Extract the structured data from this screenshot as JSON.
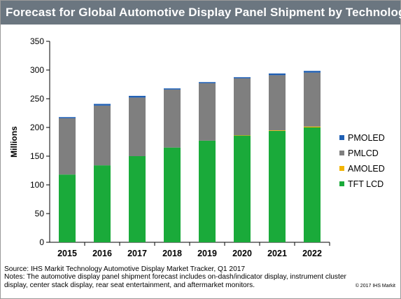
{
  "title": "Forecast for Global Automotive Display Panel Shipment by Technology",
  "source_line": "Source: IHS Markit Technology Automotive Display Market Tracker, Q1 2017",
  "notes_line": "Notes: The automotive display panel shipment forecast includes on-dash/indicator display, instrument cluster display, center stack display, rear seat entertainment, and aftermarket monitors.",
  "copyright": "© 2017 IHS Markit",
  "colors": {
    "TFT LCD": "#1aaa3a",
    "AMOLED": "#f2b400",
    "PMLCD": "#7f7f7f",
    "PMOLED": "#1f5fb4"
  },
  "chart_data": {
    "type": "bar",
    "stacked": true,
    "title": "Forecast for Global Automotive Display Panel Shipment by Technology",
    "xlabel": "",
    "ylabel": "Millions",
    "ylim": [
      0,
      350
    ],
    "yticks": [
      0,
      50,
      100,
      150,
      200,
      250,
      300,
      350
    ],
    "grid": false,
    "legend_position": "right",
    "categories": [
      "2015",
      "2016",
      "2017",
      "2018",
      "2019",
      "2020",
      "2021",
      "2022"
    ],
    "series": [
      {
        "name": "TFT LCD",
        "values": [
          118,
          134,
          150,
          165,
          177,
          186,
          194,
          200
        ]
      },
      {
        "name": "AMOLED",
        "values": [
          0,
          0,
          0,
          0,
          0,
          0.5,
          1,
          1.5
        ]
      },
      {
        "name": "PMLCD",
        "values": [
          98,
          104,
          102,
          101,
          100,
          99,
          96,
          94
        ]
      },
      {
        "name": "PMOLED",
        "values": [
          2,
          3,
          3,
          2,
          2,
          2,
          3,
          3
        ]
      }
    ],
    "legend_order": [
      "PMOLED",
      "PMLCD",
      "AMOLED",
      "TFT LCD"
    ]
  }
}
